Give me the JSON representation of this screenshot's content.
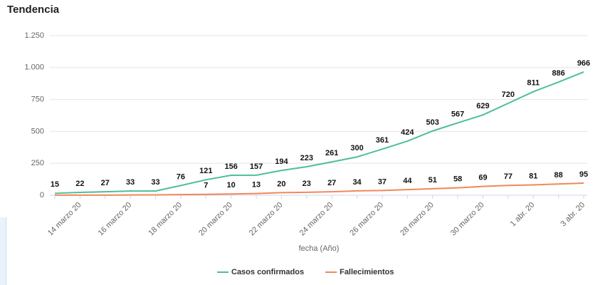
{
  "chart_data": {
    "type": "line",
    "title": "Tendencia",
    "x_label": "fecha (Año)",
    "categories": [
      null,
      "14 marzo 20",
      null,
      "16 marzo 20",
      null,
      "18 marzo 20",
      null,
      "20 marzo 20",
      null,
      "22 marzo 20",
      null,
      "24 marzo 20",
      null,
      "26 marzo 20",
      null,
      "28 marzo 20",
      null,
      "30 marzo 20",
      null,
      "1 abr. 20",
      null,
      "3 abr. 20"
    ],
    "series": [
      {
        "name": "Casos confirmados",
        "color": "#4dbf99",
        "values": [
          15,
          22,
          27,
          33,
          33,
          76,
          121,
          156,
          157,
          194,
          223,
          261,
          300,
          361,
          424,
          503,
          567,
          629,
          720,
          811,
          886,
          966
        ]
      },
      {
        "name": "Fallecimientos",
        "color": "#f2875a",
        "values": [
          1,
          1,
          1,
          2,
          3,
          5,
          7,
          10,
          13,
          20,
          23,
          27,
          34,
          37,
          44,
          51,
          58,
          69,
          77,
          81,
          88,
          95
        ],
        "value_labels": [
          null,
          null,
          null,
          null,
          null,
          null,
          7,
          10,
          13,
          20,
          23,
          27,
          34,
          37,
          44,
          51,
          58,
          69,
          77,
          81,
          88,
          95
        ]
      }
    ],
    "ylim": [
      0,
      1250
    ],
    "yticks": [
      0,
      250,
      500,
      750,
      {
        "value": 1000,
        "label": "1.000"
      },
      {
        "value": 1250,
        "label": "1.250"
      }
    ],
    "grid": true,
    "legend": "bottom"
  }
}
